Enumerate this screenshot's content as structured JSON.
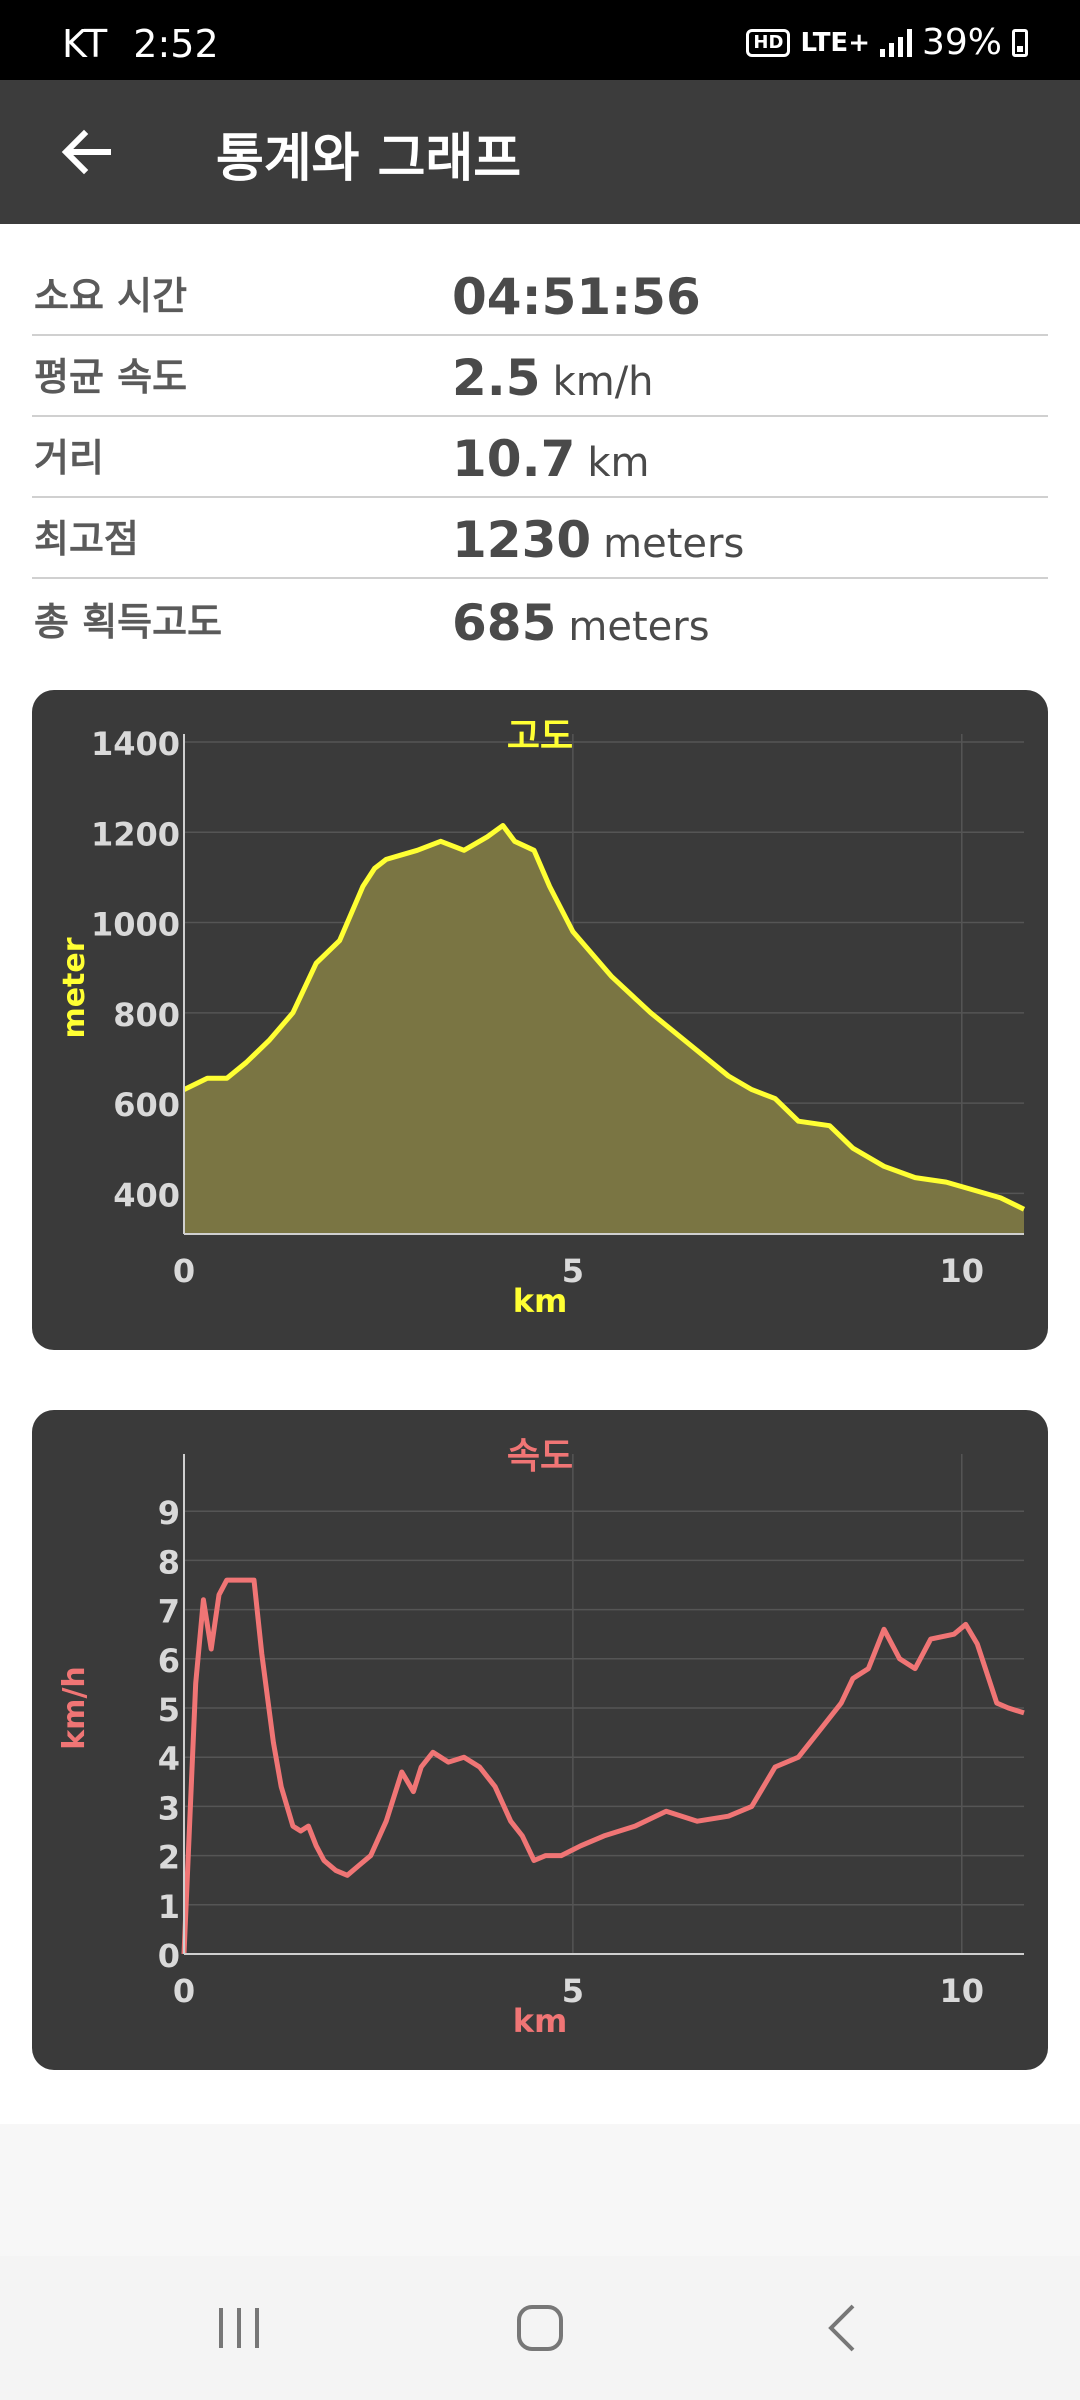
{
  "status_bar": {
    "carrier": "KT",
    "time": "2:52",
    "hd_label": "HD",
    "network": "LTE+",
    "battery": "39%"
  },
  "app_bar": {
    "title": "통계와 그래프"
  },
  "stats": [
    {
      "label": "소요 시간",
      "value": "04:51:56",
      "unit": ""
    },
    {
      "label": "평균 속도",
      "value": "2.5",
      "unit": "km/h"
    },
    {
      "label": "거리",
      "value": "10.7",
      "unit": "km"
    },
    {
      "label": "최고점",
      "value": "1230",
      "unit": "meters"
    },
    {
      "label": "총 획득고도",
      "value": "685",
      "unit": "meters"
    }
  ],
  "chart_data": [
    {
      "type": "area",
      "title": "고도",
      "xlabel": "km",
      "ylabel": "meter",
      "xlim": [
        0,
        10.8
      ],
      "ylim": [
        310,
        1400
      ],
      "x_ticks": [
        0,
        5,
        10
      ],
      "y_ticks": [
        400,
        600,
        800,
        1000,
        1200,
        1400
      ],
      "grid": true,
      "line_color": "#ffff33",
      "fill_color": "#7a7543",
      "x": [
        0,
        0.3,
        0.55,
        0.8,
        1.1,
        1.4,
        1.7,
        2.0,
        2.3,
        2.45,
        2.6,
        2.8,
        3.0,
        3.3,
        3.6,
        3.9,
        4.1,
        4.25,
        4.5,
        4.7,
        5.0,
        5.5,
        6.0,
        6.5,
        7.0,
        7.3,
        7.6,
        7.9,
        8.3,
        8.6,
        9.0,
        9.4,
        9.8,
        10.1,
        10.5,
        10.8
      ],
      "y": [
        630,
        655,
        655,
        690,
        740,
        800,
        910,
        960,
        1080,
        1120,
        1140,
        1150,
        1160,
        1180,
        1160,
        1190,
        1215,
        1180,
        1160,
        1080,
        980,
        880,
        800,
        730,
        660,
        630,
        610,
        560,
        550,
        500,
        460,
        435,
        425,
        410,
        390,
        365
      ]
    },
    {
      "type": "line",
      "title": "속도",
      "xlabel": "km",
      "ylabel": "km/h",
      "xlim": [
        0,
        10.8
      ],
      "ylim": [
        0,
        10
      ],
      "x_ticks": [
        0,
        5,
        10
      ],
      "y_ticks": [
        0,
        1,
        2,
        3,
        4,
        5,
        6,
        7,
        8,
        9
      ],
      "grid": true,
      "line_color": "#f07575",
      "x": [
        0,
        0.15,
        0.25,
        0.35,
        0.45,
        0.55,
        0.7,
        0.9,
        1.0,
        1.15,
        1.25,
        1.4,
        1.5,
        1.6,
        1.7,
        1.8,
        1.95,
        2.1,
        2.25,
        2.4,
        2.6,
        2.8,
        2.95,
        3.05,
        3.2,
        3.4,
        3.6,
        3.8,
        4.0,
        4.2,
        4.35,
        4.5,
        4.65,
        4.85,
        5.1,
        5.4,
        5.8,
        6.2,
        6.6,
        7.0,
        7.3,
        7.6,
        7.9,
        8.2,
        8.45,
        8.6,
        8.8,
        9.0,
        9.2,
        9.4,
        9.6,
        9.9,
        10.05,
        10.2,
        10.45,
        10.6,
        10.8
      ],
      "y": [
        0,
        5.5,
        7.2,
        6.2,
        7.3,
        7.6,
        7.6,
        7.6,
        6.1,
        4.3,
        3.4,
        2.6,
        2.5,
        2.6,
        2.2,
        1.9,
        1.7,
        1.6,
        1.8,
        2.0,
        2.7,
        3.7,
        3.3,
        3.8,
        4.1,
        3.9,
        4.0,
        3.8,
        3.4,
        2.7,
        2.4,
        1.9,
        2.0,
        2.0,
        2.2,
        2.4,
        2.6,
        2.9,
        2.7,
        2.8,
        3.0,
        3.8,
        4.0,
        4.6,
        5.1,
        5.6,
        5.8,
        6.6,
        6.0,
        5.8,
        6.4,
        6.5,
        6.7,
        6.3,
        5.1,
        5.0,
        4.9
      ]
    }
  ]
}
